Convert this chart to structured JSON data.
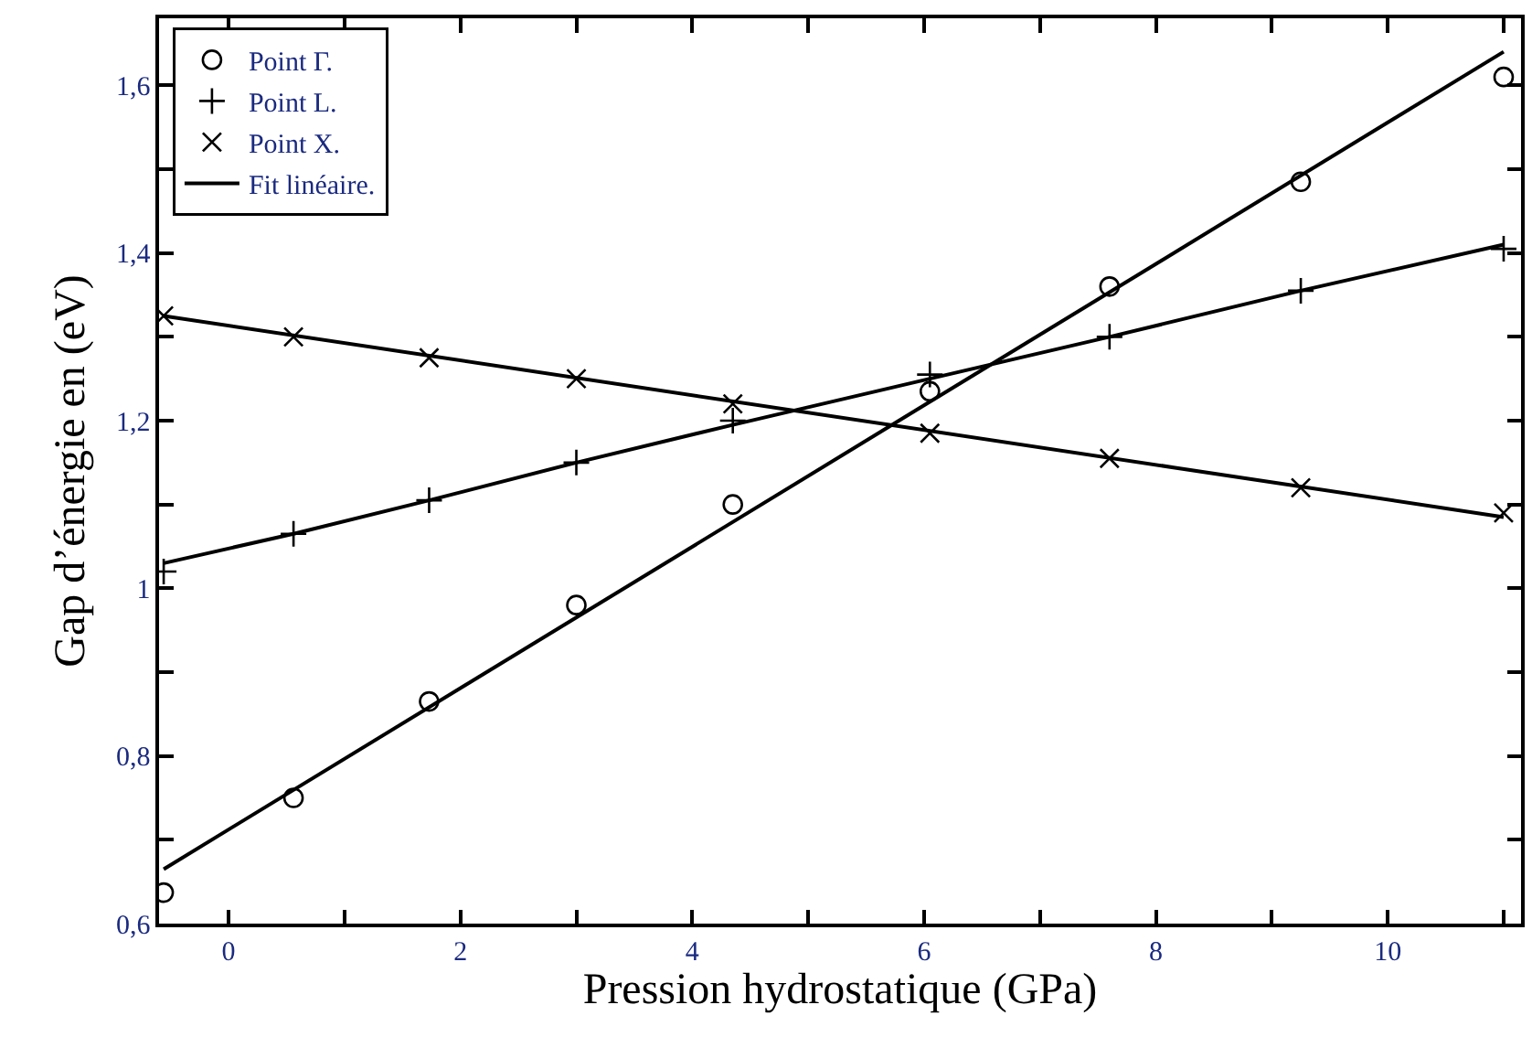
{
  "chart_data": {
    "type": "scatter",
    "xlabel": "Pression hydrostatique (GPa)",
    "ylabel": "Gap d’énergie en (eV)",
    "xlim": [
      -0.6,
      11.15
    ],
    "ylim": [
      0.6,
      1.68
    ],
    "xticks": [
      0,
      {
        "value": 1,
        "label": null
      },
      2,
      {
        "value": 3,
        "label": null
      },
      4,
      {
        "value": 5,
        "label": null
      },
      6,
      {
        "value": 7,
        "label": null
      },
      8,
      {
        "value": 9,
        "label": null
      },
      10,
      {
        "value": 11,
        "label": null
      }
    ],
    "yticks": [
      {
        "value": 0.6,
        "label": "0,6"
      },
      {
        "value": 0.7,
        "label": null
      },
      {
        "value": 0.8,
        "label": "0,8"
      },
      {
        "value": 0.9,
        "label": null
      },
      1,
      {
        "value": 1.1,
        "label": null
      },
      {
        "value": 1.2,
        "label": "1,2"
      },
      {
        "value": 1.3,
        "label": null
      },
      {
        "value": 1.4,
        "label": "1,4"
      },
      {
        "value": 1.5,
        "label": null
      },
      {
        "value": 1.6,
        "label": "1,6"
      }
    ],
    "legend": "top left",
    "series": [
      {
        "name": "Point Γ.",
        "color": "#000000",
        "marker": "circle",
        "x": [
          -0.56,
          0.56,
          1.73,
          3.0,
          4.35,
          6.05,
          7.6,
          9.25,
          11.0
        ],
        "values": [
          0.637,
          0.75,
          0.865,
          0.98,
          1.1,
          1.235,
          1.36,
          1.485,
          1.61
        ]
      },
      {
        "name": "Point L.",
        "color": "#000000",
        "marker": "cross",
        "x": [
          -0.56,
          0.56,
          1.73,
          3.0,
          4.35,
          6.05,
          7.6,
          9.25,
          11.0
        ],
        "values": [
          1.02,
          1.065,
          1.105,
          1.15,
          1.2,
          1.255,
          1.3,
          1.355,
          1.405
        ]
      },
      {
        "name": "Point X.",
        "color": "#000000",
        "marker": "x",
        "x": [
          -0.56,
          0.56,
          1.73,
          3.0,
          4.35,
          6.05,
          7.6,
          9.25,
          11.0
        ],
        "values": [
          1.325,
          1.3,
          1.275,
          1.25,
          1.22,
          1.185,
          1.155,
          1.12,
          1.09
        ]
      },
      {
        "name": "Fit linéaire.",
        "type": "line",
        "color": "#000000",
        "marker": "none",
        "line_style": "solid",
        "x": [
          -0.56,
          11.0
        ],
        "values": [
          0.665,
          1.64
        ]
      },
      {
        "type": "line",
        "color": "#000000",
        "marker": "none",
        "line_style": "solid",
        "x": [
          -0.56,
          0.56,
          1.73,
          3.0,
          4.35,
          6.05,
          7.6,
          9.25,
          11.0
        ],
        "values": [
          1.03,
          1.065,
          1.105,
          1.15,
          1.195,
          1.25,
          1.3,
          1.355,
          1.41
        ]
      },
      {
        "type": "line",
        "color": "#000000",
        "marker": "none",
        "line_style": "solid",
        "x": [
          -0.56,
          11.0
        ],
        "values": [
          1.325,
          1.085
        ]
      }
    ]
  }
}
